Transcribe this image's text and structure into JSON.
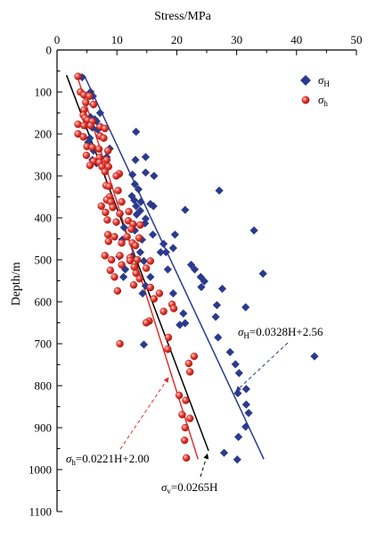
{
  "chart_data": {
    "type": "scatter",
    "xlabel": "Stress/MPa",
    "ylabel": "Depth/m",
    "x_axis_position": "top",
    "y_axis_inverted": true,
    "xlim": [
      0,
      50
    ],
    "ylim": [
      0,
      1100
    ],
    "x_ticks": [
      "0",
      "10",
      "20",
      "30",
      "40",
      "50"
    ],
    "y_ticks": [
      "0",
      "100",
      "200",
      "300",
      "400",
      "500",
      "600",
      "700",
      "800",
      "900",
      "1000",
      "1100"
    ],
    "grid": false,
    "legend_position": "top-right",
    "series": [
      {
        "name": "σH",
        "name_main": "σ",
        "name_sub": "H",
        "marker": "diamond",
        "color": "#2b3a8c",
        "points": [
          [
            4.2,
            65
          ],
          [
            5.6,
            100
          ],
          [
            6.0,
            110
          ],
          [
            6.0,
            130
          ],
          [
            7.2,
            150
          ],
          [
            5.6,
            160
          ],
          [
            6.3,
            165
          ],
          [
            6.6,
            170
          ],
          [
            4.8,
            180
          ],
          [
            5.9,
            185
          ],
          [
            6.8,
            190
          ],
          [
            13.2,
            195
          ],
          [
            7.1,
            205
          ],
          [
            5.5,
            210
          ],
          [
            5.2,
            220
          ],
          [
            8.8,
            235
          ],
          [
            6.1,
            240
          ],
          [
            8.3,
            255
          ],
          [
            14.8,
            255
          ],
          [
            5.9,
            262
          ],
          [
            13.1,
            262
          ],
          [
            6.6,
            270
          ],
          [
            12.6,
            297
          ],
          [
            14.8,
            292
          ],
          [
            16.2,
            300
          ],
          [
            13.0,
            320
          ],
          [
            13.6,
            332
          ],
          [
            12.5,
            348
          ],
          [
            12.9,
            358
          ],
          [
            14.0,
            362
          ],
          [
            15.6,
            367
          ],
          [
            13.2,
            372
          ],
          [
            16.1,
            372
          ],
          [
            27.1,
            335
          ],
          [
            13.9,
            383
          ],
          [
            21.4,
            381
          ],
          [
            10.5,
            390
          ],
          [
            13.3,
            392
          ],
          [
            14.8,
            402
          ],
          [
            14.7,
            413
          ],
          [
            11.2,
            423
          ],
          [
            13.0,
            430
          ],
          [
            32.9,
            430
          ],
          [
            16.0,
            440
          ],
          [
            19.7,
            440
          ],
          [
            10.9,
            452
          ],
          [
            14.2,
            452
          ],
          [
            17.8,
            462
          ],
          [
            19.4,
            472
          ],
          [
            13.9,
            482
          ],
          [
            17.3,
            482
          ],
          [
            18.2,
            482
          ],
          [
            10.4,
            492
          ],
          [
            12.5,
            492
          ],
          [
            14.5,
            503
          ],
          [
            22.4,
            512
          ],
          [
            11.4,
            523
          ],
          [
            18.5,
            523
          ],
          [
            23.0,
            523
          ],
          [
            34.4,
            533
          ],
          [
            11.1,
            541
          ],
          [
            15.6,
            541
          ],
          [
            24.0,
            541
          ],
          [
            24.6,
            551
          ],
          [
            14.8,
            562
          ],
          [
            24.1,
            565
          ],
          [
            27.6,
            569
          ],
          [
            14.3,
            580
          ],
          [
            19.4,
            580
          ],
          [
            26.7,
            608
          ],
          [
            31.5,
            613
          ],
          [
            21.1,
            628
          ],
          [
            26.5,
            636
          ],
          [
            21.4,
            651
          ],
          [
            20.5,
            655
          ],
          [
            26.9,
            685
          ],
          [
            14.5,
            702
          ],
          [
            28.9,
            720
          ],
          [
            43.0,
            730
          ],
          [
            29.8,
            749
          ],
          [
            30.4,
            770
          ],
          [
            31.6,
            808
          ],
          [
            30.2,
            818
          ],
          [
            31.6,
            845
          ],
          [
            32.0,
            865
          ],
          [
            31.5,
            898
          ],
          [
            30.3,
            922
          ],
          [
            27.9,
            960
          ],
          [
            30.1,
            976
          ]
        ]
      },
      {
        "name": "σh",
        "name_main": "σ",
        "name_sub": "h",
        "marker": "circle",
        "color": "#e0312b",
        "points": [
          [
            3.5,
            63
          ],
          [
            3.9,
            100
          ],
          [
            4.5,
            107
          ],
          [
            5.4,
            110
          ],
          [
            4.8,
            125
          ],
          [
            6.1,
            130
          ],
          [
            4.5,
            143
          ],
          [
            4.4,
            155
          ],
          [
            4.7,
            162
          ],
          [
            5.1,
            167
          ],
          [
            5.9,
            170
          ],
          [
            3.5,
            177
          ],
          [
            4.5,
            180
          ],
          [
            5.6,
            180
          ],
          [
            7.2,
            183
          ],
          [
            8.0,
            187
          ],
          [
            3.5,
            200
          ],
          [
            7.2,
            205
          ],
          [
            4.4,
            207
          ],
          [
            7.8,
            210
          ],
          [
            5.0,
            230
          ],
          [
            5.9,
            232
          ],
          [
            7.0,
            236
          ],
          [
            8.5,
            240
          ],
          [
            4.9,
            251
          ],
          [
            7.1,
            256
          ],
          [
            8.3,
            262
          ],
          [
            6.1,
            265
          ],
          [
            7.1,
            268
          ],
          [
            5.5,
            275
          ],
          [
            7.5,
            278
          ],
          [
            8.6,
            278
          ],
          [
            8.0,
            290
          ],
          [
            10.4,
            295
          ],
          [
            9.9,
            300
          ],
          [
            8.2,
            323
          ],
          [
            8.7,
            325
          ],
          [
            10.2,
            335
          ],
          [
            8.8,
            350
          ],
          [
            8.3,
            357
          ],
          [
            9.0,
            362
          ],
          [
            10.8,
            362
          ],
          [
            7.4,
            372
          ],
          [
            9.3,
            375
          ],
          [
            8.1,
            387
          ],
          [
            10.5,
            390
          ],
          [
            12.0,
            385
          ],
          [
            8.4,
            405
          ],
          [
            11.9,
            407
          ],
          [
            9.9,
            410
          ],
          [
            12.7,
            415
          ],
          [
            13.9,
            417
          ],
          [
            12.4,
            427
          ],
          [
            8.5,
            440
          ],
          [
            9.6,
            445
          ],
          [
            11.7,
            445
          ],
          [
            13.7,
            448
          ],
          [
            8.6,
            456
          ],
          [
            10.8,
            460
          ],
          [
            12.6,
            460
          ],
          [
            13.1,
            466
          ],
          [
            8.0,
            490
          ],
          [
            10.5,
            490
          ],
          [
            12.2,
            495
          ],
          [
            9.1,
            500
          ],
          [
            12.2,
            502
          ],
          [
            13.4,
            500
          ],
          [
            15.6,
            503
          ],
          [
            10.8,
            512
          ],
          [
            12.9,
            517
          ],
          [
            14.9,
            520
          ],
          [
            8.9,
            525
          ],
          [
            13.2,
            532
          ],
          [
            9.6,
            541
          ],
          [
            13.8,
            545
          ],
          [
            12.8,
            560
          ],
          [
            15.6,
            566
          ],
          [
            10.1,
            574
          ],
          [
            17.1,
            580
          ],
          [
            16.2,
            593
          ],
          [
            19.2,
            606
          ],
          [
            19.5,
            616
          ],
          [
            17.8,
            623
          ],
          [
            15.4,
            646
          ],
          [
            14.9,
            650
          ],
          [
            10.5,
            700
          ],
          [
            18.6,
            685
          ],
          [
            18.5,
            713
          ],
          [
            22.9,
            730
          ],
          [
            22.0,
            747
          ],
          [
            22.2,
            767
          ],
          [
            20.4,
            823
          ],
          [
            21.5,
            835
          ],
          [
            20.9,
            869
          ],
          [
            22.2,
            878
          ],
          [
            21.4,
            900
          ],
          [
            21.3,
            930
          ],
          [
            21.6,
            972
          ]
        ]
      }
    ],
    "fit_lines": [
      {
        "name": "σv",
        "color": "#000000",
        "slope": 0.0265,
        "intercept": 0,
        "depth_range": [
          60,
          955
        ],
        "label": "σv=0.0265H",
        "label_main": "σ",
        "label_sub": "v",
        "label_eq": "=0.0265H"
      },
      {
        "name": "σh",
        "color": "#e0312b",
        "slope": 0.0221,
        "intercept": 2.0,
        "depth_range": [
          60,
          975
        ],
        "label": "σh=0.0221H+2.00",
        "label_main": "σ",
        "label_sub": "h",
        "label_eq": "=0.0221H+2.00"
      },
      {
        "name": "σH",
        "color": "#2b3a8c",
        "slope": 0.0328,
        "intercept": 2.56,
        "depth_range": [
          60,
          975
        ],
        "label": "σH=0.0328H+2.56",
        "label_main": "σ",
        "label_sub": "H",
        "label_eq": "=0.0328H+2.56"
      }
    ]
  }
}
